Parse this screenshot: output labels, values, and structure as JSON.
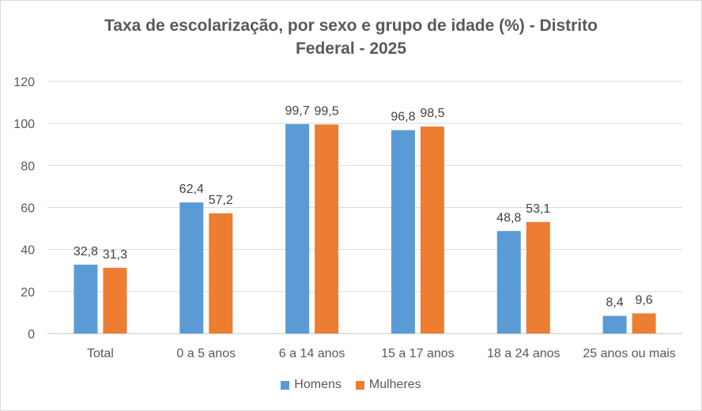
{
  "chart_data": {
    "type": "bar",
    "title_lines": [
      "Taxa de escolarização, por sexo e grupo de idade (%) - Distrito",
      "Federal - 2025"
    ],
    "categories": [
      "Total",
      "0 a 5 anos",
      "6 a 14 anos",
      "15 a 17 anos",
      "18 a 24 anos",
      "25 anos ou mais"
    ],
    "series": [
      {
        "name": "Homens",
        "color": "#5b9bd5",
        "values": [
          32.8,
          62.4,
          99.7,
          96.8,
          48.8,
          8.4
        ],
        "labels": [
          "32,8",
          "62,4",
          "99,7",
          "96,8",
          "48,8",
          "8,4"
        ]
      },
      {
        "name": "Mulheres",
        "color": "#ed7d31",
        "values": [
          31.3,
          57.2,
          99.5,
          98.5,
          53.1,
          9.6
        ],
        "labels": [
          "31,3",
          "57,2",
          "99,5",
          "98,5",
          "53,1",
          "9,6"
        ]
      }
    ],
    "ylim": [
      0,
      120
    ],
    "yticks": [
      0,
      20,
      40,
      60,
      80,
      100,
      120
    ],
    "grid": true,
    "legend_position": "bottom"
  }
}
